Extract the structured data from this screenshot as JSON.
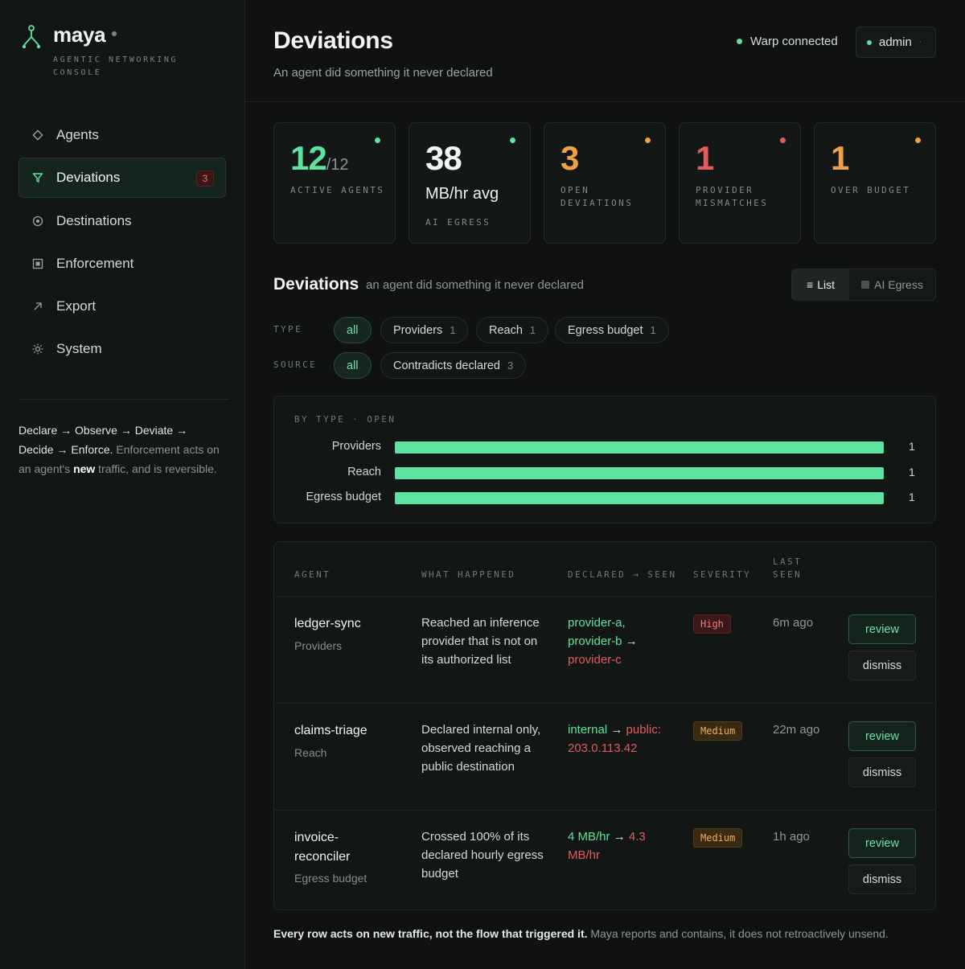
{
  "brand": {
    "name": "maya",
    "subtitle": "AGENTIC NETWORKING CONSOLE"
  },
  "sidebar": {
    "items": [
      {
        "label": "Agents",
        "icon": "diamond-icon",
        "active": false
      },
      {
        "label": "Deviations",
        "icon": "filter-icon",
        "active": true,
        "badge": "3"
      },
      {
        "label": "Destinations",
        "icon": "target-icon",
        "active": false
      },
      {
        "label": "Enforcement",
        "icon": "square-icon",
        "active": false
      },
      {
        "label": "Export",
        "icon": "arrow-up-right-icon",
        "active": false
      },
      {
        "label": "System",
        "icon": "sun-icon",
        "active": false
      }
    ],
    "note": {
      "flow": "Declare → Observe → Deviate → Decide → Enforce.",
      "text_a": " Enforcement acts on an agent's ",
      "bold": "new",
      "text_b": " traffic, and is reversible."
    }
  },
  "header": {
    "title": "Deviations",
    "subtitle": "An agent did something it never declared",
    "status": "Warp connected",
    "user": "admin"
  },
  "stats": [
    {
      "value": "12",
      "suffix": "/12",
      "label": "ACTIVE AGENTS",
      "dot_color": "#5ee29f",
      "value_color": "#5ee29f"
    },
    {
      "value": "38",
      "unit": "MB/hr avg",
      "label": "AI EGRESS",
      "dot_color": "#5ee29f",
      "value_color": "#f2f5f3"
    },
    {
      "value": "3",
      "label": "OPEN DEVIATIONS",
      "dot_color": "#efa14a",
      "value_color": "#efa14a"
    },
    {
      "value": "1",
      "label": "PROVIDER MISMATCHES",
      "dot_color": "#e45b5b",
      "value_color": "#e45b5b"
    },
    {
      "value": "1",
      "label": "OVER BUDGET",
      "dot_color": "#efa14a",
      "value_color": "#efa14a"
    }
  ],
  "section": {
    "title": "Deviations",
    "subtitle": "an agent did something it never declared",
    "view_toggle": {
      "list": "List",
      "egress": "AI Egress",
      "selected": "List"
    }
  },
  "filters": {
    "type_label": "TYPE",
    "type_chips": [
      {
        "label": "all",
        "selected": true
      },
      {
        "label": "Providers",
        "count": "1"
      },
      {
        "label": "Reach",
        "count": "1"
      },
      {
        "label": "Egress budget",
        "count": "1"
      }
    ],
    "source_label": "SOURCE",
    "source_chips": [
      {
        "label": "all",
        "selected": true
      },
      {
        "label": "Contradicts declared",
        "count": "3"
      }
    ]
  },
  "chart_data": {
    "type": "bar",
    "title": "BY TYPE · OPEN",
    "orientation": "horizontal",
    "categories": [
      "Providers",
      "Reach",
      "Egress budget"
    ],
    "values": [
      1,
      1,
      1
    ],
    "xlim": [
      0,
      1
    ],
    "color": "#5ee29f"
  },
  "table": {
    "headers": {
      "agent": "AGENT",
      "what": "WHAT HAPPENED",
      "declared": "DECLARED → SEEN",
      "severity": "SEVERITY",
      "last_seen": "LAST SEEN"
    },
    "rows": [
      {
        "agent": "ledger-sync",
        "type": "Providers",
        "what": "Reached an inference provider that is not on its authorized list",
        "declared": "provider-a, provider-b",
        "seen": "provider-c",
        "severity": "High",
        "last_seen": "6m ago",
        "review": "review",
        "dismiss": "dismiss"
      },
      {
        "agent": "claims-triage",
        "type": "Reach",
        "what": "Declared internal only, observed reaching a public destination",
        "declared": "internal",
        "seen": "public: 203.0.113.42",
        "severity": "Medium",
        "last_seen": "22m ago",
        "review": "review",
        "dismiss": "dismiss"
      },
      {
        "agent": "invoice-reconciler",
        "type": "Egress budget",
        "what": "Crossed 100% of its declared hourly egress budget",
        "declared": "4 MB/hr",
        "seen": "4.3 MB/hr",
        "severity": "Medium",
        "last_seen": "1h ago",
        "review": "review",
        "dismiss": "dismiss"
      }
    ]
  },
  "footer": {
    "bold": "Every row acts on new traffic, not the flow that triggered it.",
    "text": " Maya reports and contains, it does not retroactively unsend."
  },
  "colors": {
    "accent": "#5ee29f",
    "danger": "#e45b5b",
    "warning": "#efa14a",
    "background": "#0f1211"
  }
}
